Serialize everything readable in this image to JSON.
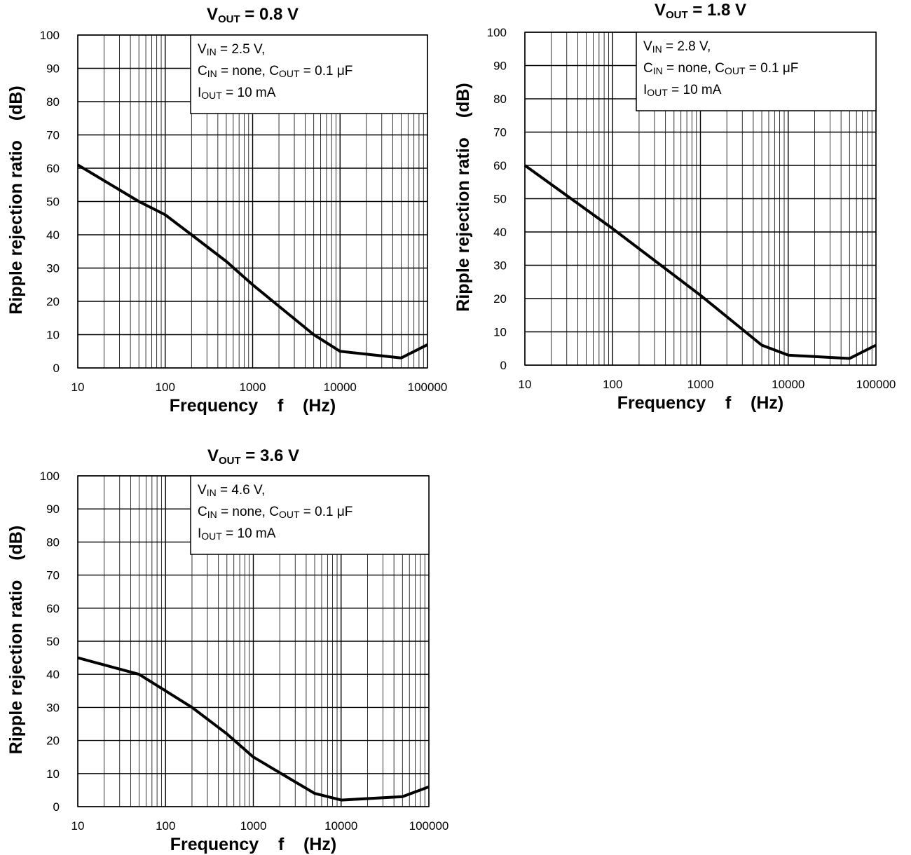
{
  "chart_data": [
    {
      "type": "line",
      "title": {
        "main": "V",
        "sub": "OUT",
        "rest": " = 0.8 V"
      },
      "xlabel": "Frequency    f    (Hz)",
      "ylabel": "Ripple rejection ratio    (dB)",
      "x_scale": "log",
      "xlim": [
        10,
        100000
      ],
      "ylim": [
        0,
        100
      ],
      "x_ticks": [
        "10",
        "100",
        "1000",
        "10000",
        "100000"
      ],
      "y_ticks": [
        "0",
        "10",
        "20",
        "30",
        "40",
        "50",
        "60",
        "70",
        "80",
        "90",
        "100"
      ],
      "grid": true,
      "annotation": [
        [
          {
            "t": "V"
          },
          {
            "t": "IN",
            "sub": true
          },
          {
            "t": " = 2.5 V,"
          }
        ],
        [
          {
            "t": "C"
          },
          {
            "t": "IN",
            "sub": true
          },
          {
            "t": " = none, C"
          },
          {
            "t": "OUT",
            "sub": true
          },
          {
            "t": " = 0.1 μF"
          }
        ],
        [
          {
            "t": "I"
          },
          {
            "t": "OUT",
            "sub": true
          },
          {
            "t": " = 10 mA"
          }
        ]
      ],
      "series": [
        {
          "x": [
            10,
            50,
            100,
            200,
            500,
            1000,
            5000,
            10000,
            50000,
            100000
          ],
          "y": [
            61,
            50,
            46,
            40,
            32,
            25,
            10,
            5,
            3,
            7
          ]
        }
      ]
    },
    {
      "type": "line",
      "title": {
        "main": "V",
        "sub": "OUT",
        "rest": " = 1.8 V"
      },
      "xlabel": "Frequency    f    (Hz)",
      "ylabel": "Ripple rejection ratio    (dB)",
      "x_scale": "log",
      "xlim": [
        10,
        100000
      ],
      "ylim": [
        0,
        100
      ],
      "x_ticks": [
        "10",
        "100",
        "1000",
        "10000",
        "100000"
      ],
      "y_ticks": [
        "0",
        "10",
        "20",
        "30",
        "40",
        "50",
        "60",
        "70",
        "80",
        "90",
        "100"
      ],
      "grid": true,
      "annotation": [
        [
          {
            "t": "V"
          },
          {
            "t": "IN",
            "sub": true
          },
          {
            "t": " = 2.8 V,"
          }
        ],
        [
          {
            "t": "C"
          },
          {
            "t": "IN",
            "sub": true
          },
          {
            "t": " = none, C"
          },
          {
            "t": "OUT",
            "sub": true
          },
          {
            "t": " = 0.1 μF"
          }
        ],
        [
          {
            "t": "I"
          },
          {
            "t": "OUT",
            "sub": true
          },
          {
            "t": " = 10 mA"
          }
        ]
      ],
      "series": [
        {
          "x": [
            10,
            100,
            1000,
            5000,
            10000,
            50000,
            100000
          ],
          "y": [
            60,
            41,
            21,
            6,
            3,
            2,
            6
          ]
        }
      ]
    },
    {
      "type": "line",
      "title": {
        "main": "V",
        "sub": "OUT",
        "rest": " = 3.6 V"
      },
      "xlabel": "Frequency    f    (Hz)",
      "ylabel": "Ripple rejection ratio    (dB)",
      "x_scale": "log",
      "xlim": [
        10,
        100000
      ],
      "ylim": [
        0,
        100
      ],
      "x_ticks": [
        "10",
        "100",
        "1000",
        "10000",
        "100000"
      ],
      "y_ticks": [
        "0",
        "10",
        "20",
        "30",
        "40",
        "50",
        "60",
        "70",
        "80",
        "90",
        "100"
      ],
      "grid": true,
      "annotation": [
        [
          {
            "t": "V"
          },
          {
            "t": "IN",
            "sub": true
          },
          {
            "t": " = 4.6 V,"
          }
        ],
        [
          {
            "t": "C"
          },
          {
            "t": "IN",
            "sub": true
          },
          {
            "t": " = none, C"
          },
          {
            "t": "OUT",
            "sub": true
          },
          {
            "t": " = 0.1 μF"
          }
        ],
        [
          {
            "t": "I"
          },
          {
            "t": "OUT",
            "sub": true
          },
          {
            "t": " = 10 mA"
          }
        ]
      ],
      "series": [
        {
          "x": [
            10,
            50,
            100,
            200,
            500,
            1000,
            5000,
            10000,
            50000,
            100000
          ],
          "y": [
            45,
            40,
            35,
            30,
            22,
            15,
            4,
            2,
            3,
            6
          ]
        }
      ]
    }
  ]
}
